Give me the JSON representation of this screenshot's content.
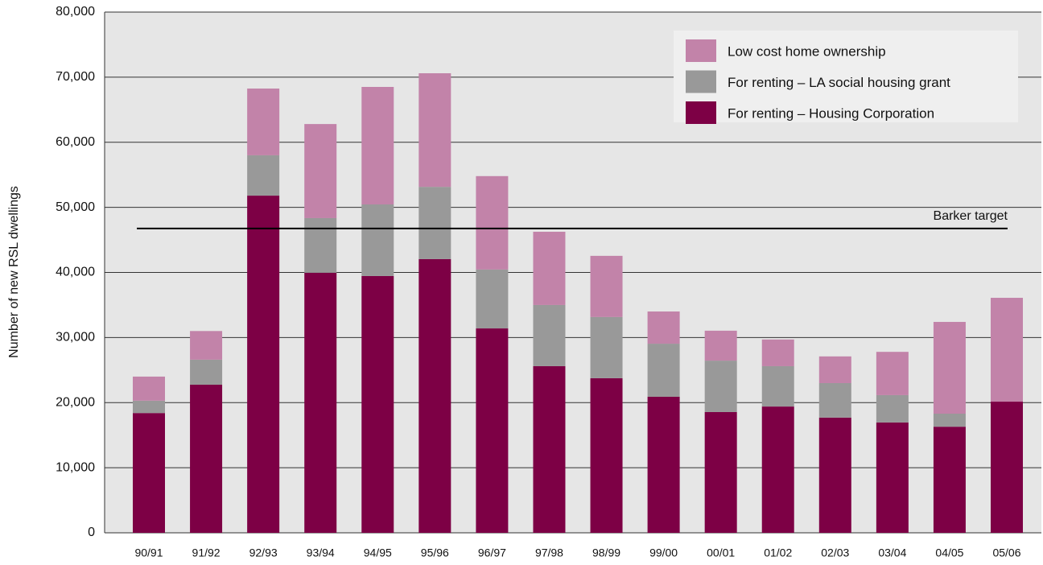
{
  "chart_data": {
    "type": "stacked_bar",
    "y_label": "Number of new RSL dwellings",
    "categories": [
      "90/91",
      "91/92",
      "92/93",
      "93/94",
      "94/95",
      "95/96",
      "96/97",
      "97/98",
      "98/99",
      "99/00",
      "00/01",
      "01/02",
      "02/03",
      "03/04",
      "04/05",
      "05/06"
    ],
    "series": [
      {
        "name": "For renting – Housing Corporation",
        "color": "#7d0045",
        "values": [
          18400,
          22750,
          51800,
          39950,
          39450,
          42050,
          31400,
          25600,
          23750,
          20900,
          18550,
          19400,
          17700,
          16950,
          16300,
          20150
        ]
      },
      {
        "name": "For renting – LA social housing grant",
        "color": "#999999",
        "values": [
          1900,
          3850,
          6200,
          8400,
          11000,
          11100,
          9050,
          9400,
          9400,
          8150,
          7900,
          6200,
          5300,
          4200,
          2000,
          0
        ]
      },
      {
        "name": "Low cost home ownership",
        "color": "#c283a9",
        "values": [
          3700,
          4400,
          10250,
          14450,
          18050,
          17450,
          14350,
          11250,
          9400,
          4950,
          4600,
          4100,
          4100,
          6650,
          14100,
          15950
        ]
      }
    ],
    "reference_lines": [
      {
        "label": "Barker target",
        "value": 46750
      }
    ],
    "ylim": [
      0,
      80000
    ],
    "yticks": [
      0,
      {
        "value": 10000,
        "label": "10,000"
      },
      {
        "value": 20000,
        "label": "20,000"
      },
      {
        "value": 30000,
        "label": "30,000"
      },
      {
        "value": 40000,
        "label": "40,000"
      },
      {
        "value": 50000,
        "label": "50,000"
      },
      {
        "value": 60000,
        "label": "60,000"
      },
      {
        "value": 70000,
        "label": "70,000"
      },
      {
        "value": 80000,
        "label": "80,000"
      }
    ],
    "grid": true,
    "legend": "top-right"
  }
}
